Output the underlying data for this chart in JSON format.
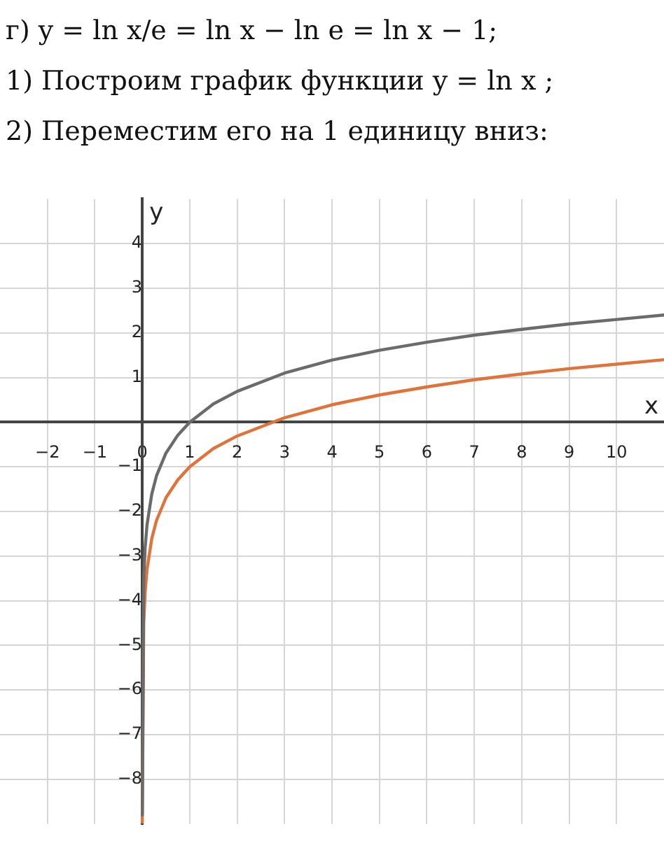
{
  "chart_data": {
    "type": "line",
    "title": "г) y = ln x/e = ln x − ln e = ln x − 1;",
    "subtitle": "1) Построим график функции y = ln x ;",
    "annotations": [
      "2) Переместим его на 1 единицу вниз:"
    ],
    "xlabel": "x",
    "ylabel": "y",
    "xlim": [
      -3,
      11
    ],
    "ylim": [
      -9,
      5
    ],
    "xticks": [
      -2,
      -1,
      0,
      1,
      2,
      3,
      4,
      5,
      6,
      7,
      8,
      9,
      10
    ],
    "yticks": [
      -8,
      -7,
      -6,
      -5,
      -4,
      -3,
      -2,
      -1,
      1,
      2,
      3,
      4
    ],
    "grid": true,
    "marker": "none",
    "line_style": "solid",
    "series": [
      {
        "color": "#6b6b6b",
        "x": [
          0.00015,
          0.03,
          0.06,
          0.1,
          0.2,
          0.3,
          0.5,
          0.75,
          1,
          1.5,
          2,
          3,
          4,
          5,
          6,
          7,
          8,
          9,
          10,
          11
        ],
        "values": [
          -8.8,
          -3.51,
          -2.81,
          -2.3,
          -1.61,
          -1.2,
          -0.69,
          -0.29,
          0,
          0.41,
          0.69,
          1.1,
          1.39,
          1.61,
          1.79,
          1.95,
          2.08,
          2.2,
          2.3,
          2.4
        ]
      },
      {
        "color": "#e0733a",
        "x": [
          0.00035,
          0.03,
          0.06,
          0.1,
          0.2,
          0.3,
          0.5,
          0.75,
          1,
          1.5,
          2,
          3,
          4,
          5,
          6,
          7,
          8,
          9,
          10,
          11
        ],
        "values": [
          -8.96,
          -4.51,
          -3.81,
          -3.3,
          -2.61,
          -2.2,
          -1.69,
          -1.29,
          -1,
          -0.59,
          -0.31,
          0.1,
          0.39,
          0.61,
          0.79,
          0.95,
          1.08,
          1.2,
          1.3,
          1.4
        ]
      }
    ]
  }
}
